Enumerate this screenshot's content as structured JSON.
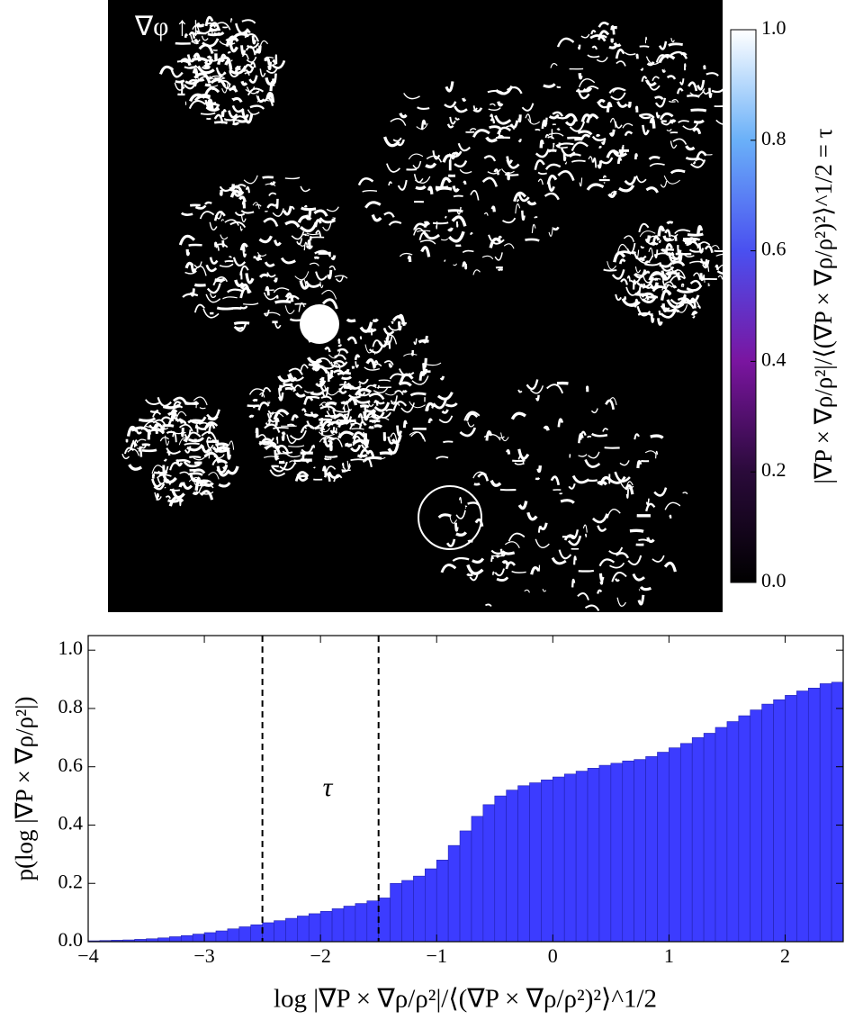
{
  "chart_data": [
    {
      "type": "image",
      "panel_label": "∇φ ↑↓",
      "colorbar_label": "|∇P × ∇ρ/ρ²|/⟨(∇P × ∇ρ/ρ²)²⟩^1/2 = τ",
      "clim": [
        0,
        1
      ],
      "cticks": [
        {
          "value": 0,
          "label": "0.0"
        },
        {
          "value": 0.2,
          "label": "0.2"
        },
        {
          "value": 0.4,
          "label": "0.4"
        },
        {
          "value": 0.6,
          "label": "0.6"
        },
        {
          "value": 0.8,
          "label": "0.8"
        },
        {
          "value": 1,
          "label": "1.0"
        }
      ]
    },
    {
      "type": "histogram",
      "color": "#3c3cff",
      "xlabel": "log |∇P × ∇ρ/ρ²|/⟨(∇P × ∇ρ/ρ²)²⟩^1/2",
      "ylabel": "p(log |∇P × ∇ρ/ρ²|)",
      "annotation": "τ",
      "vlines": [
        -2.5,
        -1.5
      ],
      "xlim": [
        -4,
        2.5
      ],
      "ylim": [
        0,
        1.05
      ],
      "xticks": [
        {
          "value": -4,
          "label": "−4"
        },
        {
          "value": -3,
          "label": "−3"
        },
        {
          "value": -2,
          "label": "−2"
        },
        {
          "value": -1,
          "label": "−1"
        },
        0,
        1,
        2
      ],
      "yticks": [
        {
          "value": 0,
          "label": "0.0"
        },
        {
          "value": 0.2,
          "label": "0.2"
        },
        {
          "value": 0.4,
          "label": "0.4"
        },
        {
          "value": 0.6,
          "label": "0.6"
        },
        {
          "value": 0.8,
          "label": "0.8"
        },
        {
          "value": 1,
          "label": "1.0"
        }
      ],
      "bins": [
        -4.0,
        -3.9,
        -3.8,
        -3.7,
        -3.6,
        -3.5,
        -3.4,
        -3.3,
        -3.2,
        -3.1,
        -3.0,
        -2.9,
        -2.8,
        -2.7,
        -2.6,
        -2.5,
        -2.4,
        -2.3,
        -2.2,
        -2.1,
        -2.0,
        -1.9,
        -1.8,
        -1.7,
        -1.6,
        -1.5,
        -1.4,
        -1.3,
        -1.2,
        -1.1,
        -1.0,
        -0.9,
        -0.8,
        -0.7,
        -0.6,
        -0.5,
        -0.4,
        -0.3,
        -0.2,
        -0.1,
        0.0,
        0.1,
        0.2,
        0.3,
        0.4,
        0.5,
        0.6,
        0.7,
        0.8,
        0.9,
        1.0,
        1.1,
        1.2,
        1.3,
        1.4,
        1.5,
        1.6,
        1.7,
        1.8,
        1.9,
        2.0,
        2.1,
        2.2,
        2.3,
        2.4,
        2.5
      ],
      "values": [
        0.003,
        0.004,
        0.005,
        0.006,
        0.008,
        0.01,
        0.013,
        0.017,
        0.021,
        0.026,
        0.031,
        0.037,
        0.044,
        0.051,
        0.058,
        0.065,
        0.072,
        0.08,
        0.088,
        0.096,
        0.104,
        0.113,
        0.122,
        0.131,
        0.14,
        0.15,
        0.2,
        0.21,
        0.225,
        0.25,
        0.28,
        0.33,
        0.38,
        0.43,
        0.47,
        0.5,
        0.52,
        0.535,
        0.545,
        0.555,
        0.565,
        0.575,
        0.585,
        0.595,
        0.605,
        0.612,
        0.62,
        0.625,
        0.635,
        0.65,
        0.665,
        0.68,
        0.7,
        0.715,
        0.735,
        0.755,
        0.775,
        0.795,
        0.815,
        0.83,
        0.845,
        0.86,
        0.87,
        0.885,
        0.89
      ]
    }
  ]
}
